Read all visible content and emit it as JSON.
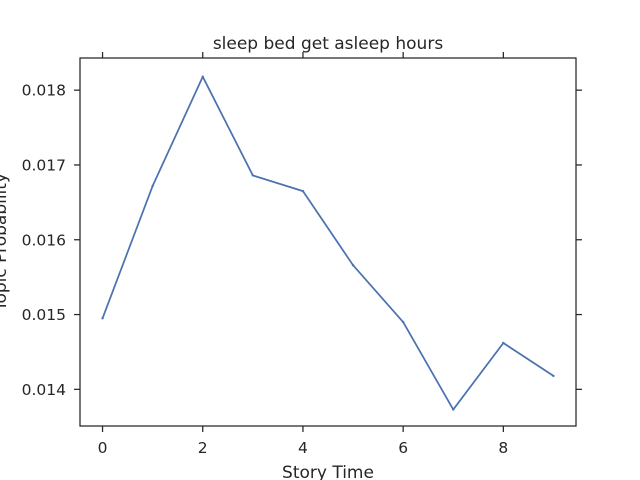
{
  "chart_data": {
    "type": "line",
    "title": "sleep bed get asleep hours",
    "xlabel": "Story Time",
    "ylabel": "Topic Probability",
    "xlim": [
      -0.45,
      9.45
    ],
    "ylim": [
      0.01351,
      0.01843
    ],
    "xticks": [
      0,
      2,
      4,
      6,
      8
    ],
    "xtick_labels": [
      "0",
      "2",
      "4",
      "6",
      "8"
    ],
    "yticks": [
      0.014,
      0.015,
      0.016,
      0.017,
      0.018
    ],
    "ytick_labels": [
      "0.014",
      "0.015",
      "0.016",
      "0.017",
      "0.018"
    ],
    "grid": false,
    "series": [
      {
        "color": "#4c72b0",
        "x": [
          0,
          1,
          2,
          3,
          4,
          5,
          6,
          7,
          8,
          9
        ],
        "y": [
          0.01495,
          0.01672,
          0.01818,
          0.01686,
          0.01665,
          0.01566,
          0.0149,
          0.01373,
          0.01462,
          0.01418
        ]
      }
    ]
  }
}
